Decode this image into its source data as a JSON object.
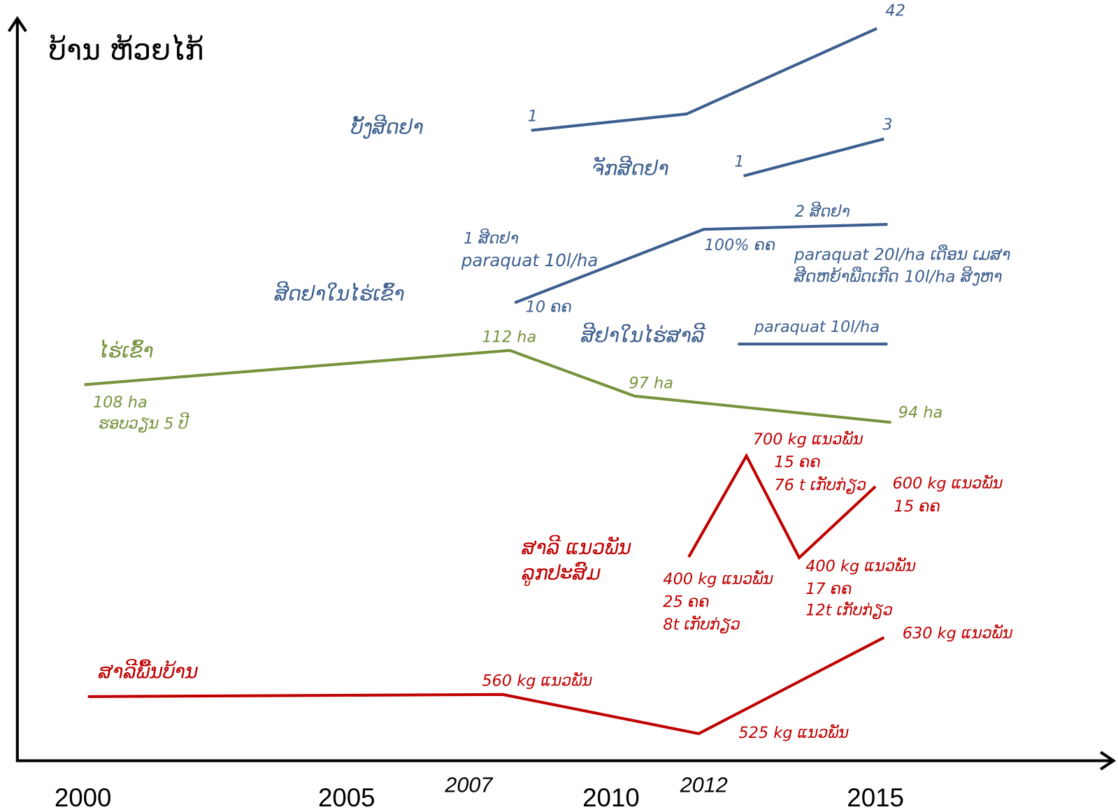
{
  "title": "ບ້ານ ຫ້ວຍໄກ້",
  "years": [
    "2000",
    "2005",
    "2007",
    "2010",
    "2012",
    "2015"
  ],
  "groups": [
    {
      "name": "ບັ້ງສີດຢາ",
      "notes": [
        "1",
        "42"
      ]
    },
    {
      "name": "ຈັກສີດຢາ",
      "notes": [
        "1",
        "3"
      ]
    },
    {
      "name": "ສີດຢາໃນໄຮ່ເຂົ້າ",
      "notes": [
        "1 ສີດຢາ",
        "paraquat 10l/ha",
        "10  ຄຄ",
        "2 ສີດຢາ",
        "100%  ຄຄ",
        "paraquat 20l/ha ເດືອນ ເມສາ",
        "ສີດຫຍ້າພືດເກີດ 10l/ha  ສິງຫາ"
      ]
    },
    {
      "name": "ສີຢາໃນໄຮ່ສາລີ",
      "notes": [
        "paraquat 10l/ha"
      ]
    },
    {
      "name": "ໄຮ່ເຂົ້າ",
      "notes": [
        "108 ha",
        "ຮອບວຽນ 5 ປີ",
        "112 ha",
        "97 ha",
        "94 ha"
      ]
    },
    {
      "name": "ສາລີ ແນວພັນ",
      "notes": [
        "ລູກປະສົມ",
        "400 kg ແນວພັນ",
        "25 ຄຄ",
        "8t  ເກັບກ່ຽວ",
        "700 kg  ແນວພັນ",
        "15 ຄຄ",
        "76 t  ເກັບກ່ຽວ",
        "400 kg  ແນວພັນ",
        "17 ຄຄ",
        "12t ເກັບກ່ຽວ",
        "600 kg  ແນວພັນ",
        "15 ຄຄ"
      ]
    },
    {
      "name": "ສາລີພື້ນບ້ານ",
      "notes": [
        "560 kg ແນວພັນ",
        "525 kg  ແນວພັນ",
        "630 kg ແນວພັນ"
      ]
    }
  ]
}
